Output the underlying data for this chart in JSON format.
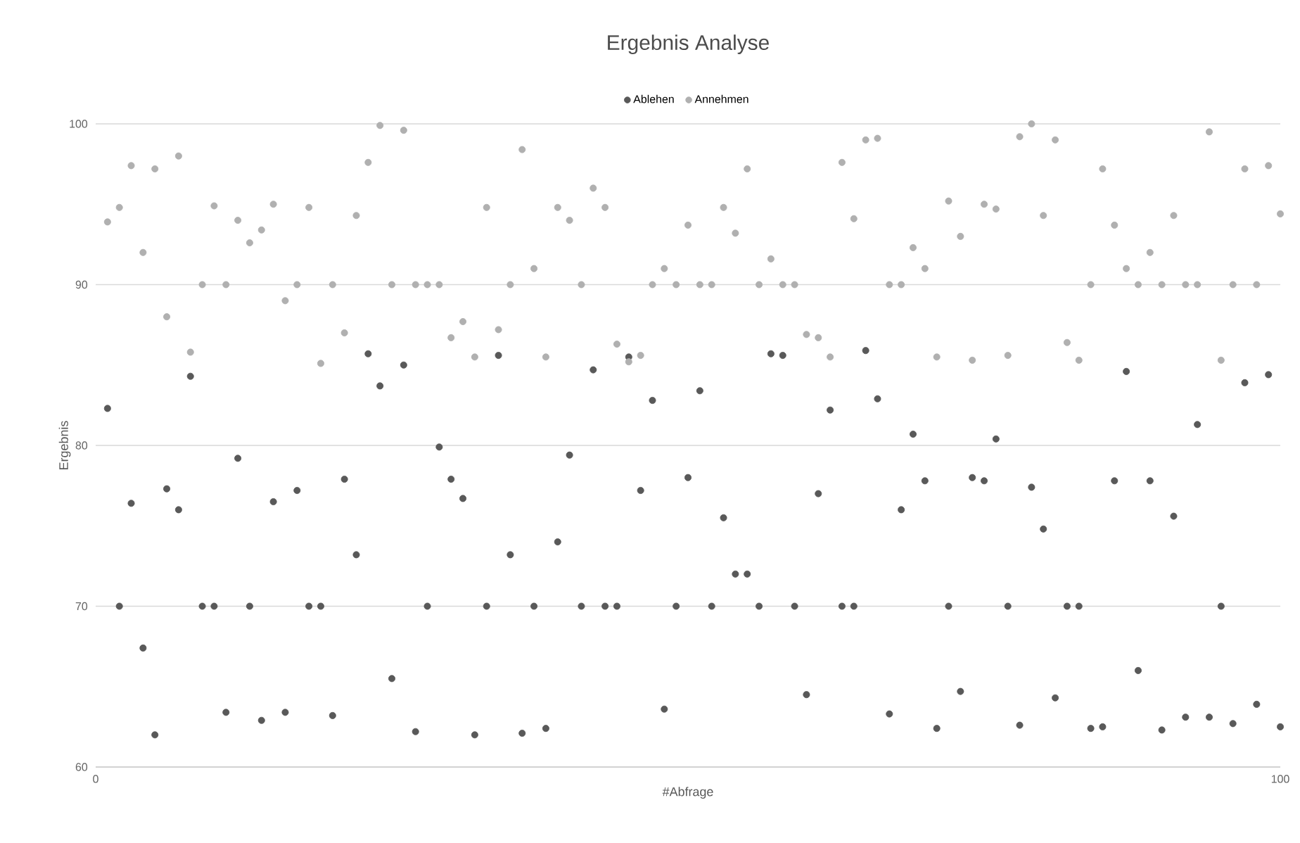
{
  "chart_data": {
    "type": "scatter",
    "title": "Ergebnis Analyse",
    "xlabel": "#Abfrage",
    "ylabel": "Ergebnis",
    "xlim": [
      0,
      100
    ],
    "xticks": [
      0,
      100
    ],
    "ylim": [
      60,
      100
    ],
    "yticks": [
      60,
      70,
      80,
      90,
      100
    ],
    "grid": "y",
    "legend": "top",
    "marker": "circle",
    "x": [
      1,
      2,
      3,
      4,
      5,
      6,
      7,
      8,
      9,
      10,
      11,
      12,
      13,
      14,
      15,
      16,
      17,
      18,
      19,
      20,
      21,
      22,
      23,
      24,
      25,
      26,
      27,
      28,
      29,
      30,
      31,
      32,
      33,
      34,
      35,
      36,
      37,
      38,
      39,
      40,
      41,
      42,
      43,
      44,
      45,
      46,
      47,
      48,
      49,
      50,
      51,
      52,
      53,
      54,
      55,
      56,
      57,
      58,
      59,
      60,
      61,
      62,
      63,
      64,
      65,
      66,
      67,
      68,
      69,
      70,
      71,
      72,
      73,
      74,
      75,
      76,
      77,
      78,
      79,
      80,
      81,
      82,
      83,
      84,
      85,
      86,
      87,
      88,
      89,
      90,
      91,
      92,
      93,
      94,
      95,
      96,
      97,
      98,
      99,
      100
    ],
    "series": [
      {
        "name": "Ablehen",
        "color": "#595959",
        "values": [
          82.3,
          70,
          76.4,
          67.4,
          62,
          77.3,
          76,
          84.3,
          70,
          70,
          63.4,
          79.2,
          70,
          62.9,
          76.5,
          63.4,
          77.2,
          70,
          70,
          63.2,
          77.9,
          73.2,
          85.7,
          83.7,
          65.5,
          85,
          62.2,
          70,
          79.9,
          77.9,
          76.7,
          62,
          70,
          85.6,
          73.2,
          62.1,
          70,
          62.4,
          74,
          79.4,
          70,
          84.7,
          70,
          70,
          85.5,
          77.2,
          82.8,
          63.6,
          70,
          78,
          83.4,
          70,
          75.5,
          72,
          72,
          70,
          85.7,
          85.6,
          70,
          64.5,
          77,
          82.2,
          70,
          70,
          85.9,
          82.9,
          63.3,
          76,
          80.7,
          77.8,
          62.4,
          70,
          64.7,
          78,
          77.8,
          80.4,
          70,
          62.6,
          77.4,
          74.8,
          64.3,
          70,
          70,
          62.4,
          62.5,
          77.8,
          84.6,
          66,
          77.8,
          62.3,
          75.6,
          63.1,
          81.3,
          63.1,
          70,
          62.7,
          83.9,
          63.9,
          84.4,
          62.5
        ]
      },
      {
        "name": "Annehmen",
        "color": "#b0b0b0",
        "values": [
          93.9,
          94.8,
          97.4,
          92,
          97.2,
          88,
          98,
          85.8,
          90,
          94.9,
          90,
          94,
          92.6,
          93.4,
          95,
          89,
          90,
          94.8,
          85.1,
          90,
          87,
          94.3,
          97.6,
          99.9,
          90,
          99.6,
          90,
          90,
          90,
          86.7,
          87.7,
          85.5,
          94.8,
          87.2,
          90,
          98.4,
          91,
          85.5,
          94.8,
          94,
          90,
          96,
          94.8,
          86.3,
          85.2,
          85.6,
          90,
          91,
          90,
          93.7,
          90,
          90,
          94.8,
          93.2,
          97.2,
          90,
          91.6,
          90,
          90,
          86.9,
          86.7,
          85.5,
          97.6,
          94.1,
          99,
          99.1,
          90,
          90,
          92.3,
          91,
          85.5,
          95.2,
          93,
          85.3,
          95,
          94.7,
          85.6,
          99.2,
          100,
          94.3,
          99,
          86.4,
          85.3,
          90,
          97.2,
          93.7,
          91,
          90,
          92,
          90,
          94.3,
          90,
          90,
          99.5,
          85.3,
          90,
          97.2,
          90,
          97.4,
          94.4
        ]
      }
    ]
  }
}
